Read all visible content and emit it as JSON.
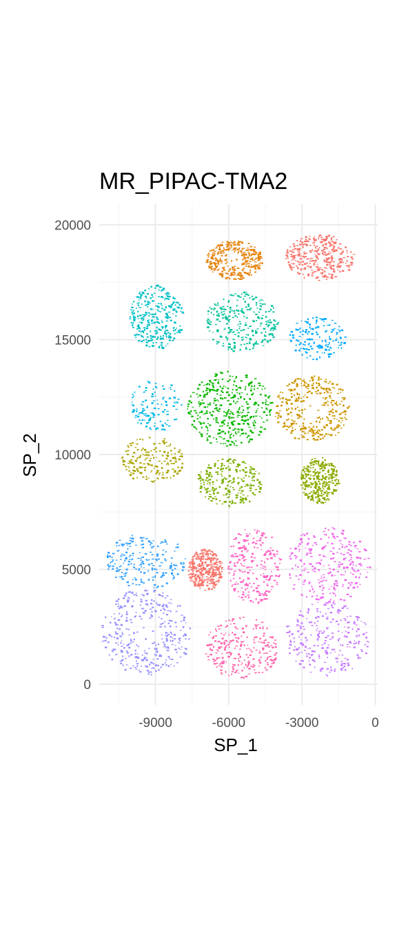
{
  "chart_data": {
    "type": "scatter",
    "title": "MR_PIPAC-TMA2",
    "xlabel": "SP_1",
    "ylabel": "SP_2",
    "xlim": [
      -11300,
      100
    ],
    "ylim": [
      -900,
      20900
    ],
    "x_ticks": [
      -9000,
      -6000,
      -3000,
      0
    ],
    "x_tick_labels": [
      "-9000",
      "-6000",
      "-3000",
      "0"
    ],
    "y_ticks": [
      0,
      5000,
      10000,
      15000,
      20000
    ],
    "y_tick_labels": [
      "0",
      "5000",
      "10000",
      "15000",
      "20000"
    ],
    "grid": true,
    "legend": "none",
    "clusters": [
      {
        "color": "#F8766D",
        "center": [
          -2300,
          18600
        ],
        "size": [
          2800,
          2000
        ],
        "density": 0.65
      },
      {
        "color": "#E68613",
        "center": [
          -5800,
          18500
        ],
        "size": [
          2300,
          1700
        ],
        "density": 0.75,
        "hole": true
      },
      {
        "color": "#00BFC4",
        "center": [
          -9000,
          16000
        ],
        "size": [
          2200,
          2800
        ],
        "density": 0.55
      },
      {
        "color": "#00C19A",
        "center": [
          -5500,
          15800
        ],
        "size": [
          3000,
          2600
        ],
        "density": 0.5
      },
      {
        "color": "#00A9FF",
        "center": [
          -2400,
          15100
        ],
        "size": [
          2300,
          1900
        ],
        "density": 0.2
      },
      {
        "color": "#00B8E7",
        "center": [
          -9000,
          12200
        ],
        "size": [
          2100,
          2300
        ],
        "density": 0.15
      },
      {
        "color": "#0CB702",
        "center": [
          -6000,
          12000
        ],
        "size": [
          3500,
          3300
        ],
        "density": 0.8
      },
      {
        "color": "#CD9600",
        "center": [
          -2600,
          12000
        ],
        "size": [
          3100,
          2900
        ],
        "density": 0.75,
        "hole": true
      },
      {
        "color": "#ABA300",
        "center": [
          -9200,
          9800
        ],
        "size": [
          2700,
          2000
        ],
        "density": 0.3
      },
      {
        "color": "#7CAE00",
        "center": [
          -6000,
          8800
        ],
        "size": [
          2700,
          2100
        ],
        "density": 0.45
      },
      {
        "color": "#8AAB00",
        "center": [
          -2300,
          8900
        ],
        "size": [
          1600,
          2000
        ],
        "density": 0.55
      },
      {
        "color": "#35A2FF",
        "center": [
          -9400,
          5400
        ],
        "size": [
          3300,
          2400
        ],
        "density": 0.35
      },
      {
        "color": "#F8766D",
        "center": [
          -7000,
          5000
        ],
        "size": [
          1400,
          1800
        ],
        "density": 0.7
      },
      {
        "color": "#FF61C3",
        "center": [
          -5000,
          5200
        ],
        "size": [
          2200,
          3400
        ],
        "density": 0.45
      },
      {
        "color": "#ED68ED",
        "center": [
          -2000,
          5200
        ],
        "size": [
          3500,
          3300
        ],
        "density": 0.5
      },
      {
        "color": "#9590FF",
        "center": [
          -9400,
          2300
        ],
        "size": [
          3700,
          3800
        ],
        "density": 0.75,
        "hole": true
      },
      {
        "color": "#FF65AC",
        "center": [
          -5500,
          1600
        ],
        "size": [
          3000,
          2700
        ],
        "density": 0.45
      },
      {
        "color": "#C77CFF",
        "center": [
          -2000,
          2000
        ],
        "size": [
          3500,
          3300
        ],
        "density": 0.5
      }
    ]
  }
}
